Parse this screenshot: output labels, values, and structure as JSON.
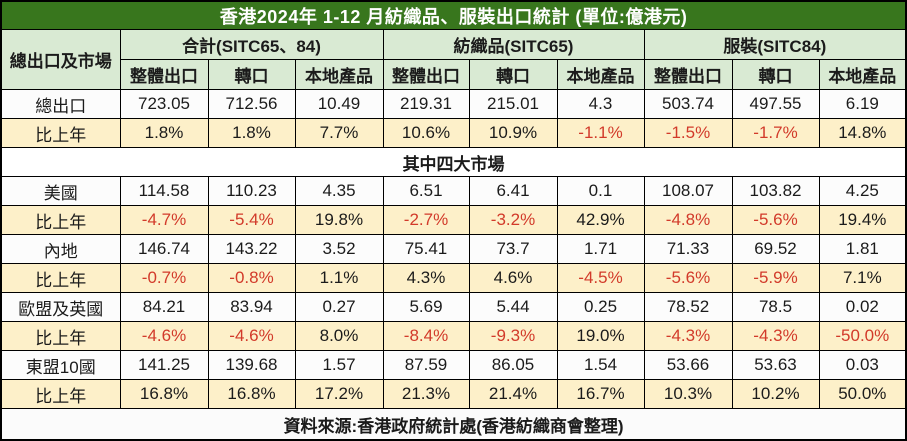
{
  "title": "香港2024年 1-12 月紡織品、服裝出口統計 (單位:億港元)",
  "unit_note": "單位:億港元",
  "footer": "資料來源:香港政府統計處(香港紡織商會整理)",
  "header": {
    "corner": "總出口及市場",
    "groups": [
      "合計(SITC65、84)",
      "紡織品(SITC65)",
      "服裝(SITC84)"
    ],
    "subcols": [
      "整體出口",
      "轉口",
      "本地產品"
    ]
  },
  "rows": [
    {
      "label": "總出口",
      "type": "value",
      "cells": [
        "723.05",
        "712.56",
        "10.49",
        "219.31",
        "215.01",
        "4.3",
        "503.74",
        "497.55",
        "6.19"
      ]
    },
    {
      "label": "比上年",
      "type": "pct",
      "cells": [
        "1.8%",
        "1.8%",
        "7.7%",
        "10.6%",
        "10.9%",
        "-1.1%",
        "-1.5%",
        "-1.7%",
        "14.8%"
      ]
    },
    {
      "label": "其中四大市場",
      "type": "section",
      "cells": []
    },
    {
      "label": "美國",
      "type": "value",
      "cells": [
        "114.58",
        "110.23",
        "4.35",
        "6.51",
        "6.41",
        "0.1",
        "108.07",
        "103.82",
        "4.25"
      ]
    },
    {
      "label": "比上年",
      "type": "pct",
      "cells": [
        "-4.7%",
        "-5.4%",
        "19.8%",
        "-2.7%",
        "-3.2%",
        "42.9%",
        "-4.8%",
        "-5.6%",
        "19.4%"
      ]
    },
    {
      "label": "內地",
      "type": "value",
      "cells": [
        "146.74",
        "143.22",
        "3.52",
        "75.41",
        "73.7",
        "1.71",
        "71.33",
        "69.52",
        "1.81"
      ]
    },
    {
      "label": "比上年",
      "type": "pct",
      "cells": [
        "-0.7%",
        "-0.8%",
        "1.1%",
        "4.3%",
        "4.6%",
        "-4.5%",
        "-5.6%",
        "-5.9%",
        "7.1%"
      ]
    },
    {
      "label": "歐盟及英國",
      "type": "value",
      "cells": [
        "84.21",
        "83.94",
        "0.27",
        "5.69",
        "5.44",
        "0.25",
        "78.52",
        "78.5",
        "0.02"
      ]
    },
    {
      "label": "比上年",
      "type": "pct",
      "cells": [
        "-4.6%",
        "-4.6%",
        "8.0%",
        "-8.4%",
        "-9.3%",
        "19.0%",
        "-4.3%",
        "-4.3%",
        "-50.0%"
      ]
    },
    {
      "label": "東盟10國",
      "type": "value",
      "cells": [
        "141.25",
        "139.68",
        "1.57",
        "87.59",
        "86.05",
        "1.54",
        "53.66",
        "53.63",
        "0.03"
      ]
    },
    {
      "label": "比上年",
      "type": "pct",
      "cells": [
        "16.8%",
        "16.8%",
        "17.2%",
        "21.3%",
        "21.4%",
        "16.7%",
        "10.3%",
        "10.2%",
        "50.0%"
      ]
    }
  ],
  "colors": {
    "title_bg": "#38761d",
    "title_text": "#ffffff",
    "header_bg": "#d9ead3",
    "pct_row_bg": "#fdf0c9",
    "negative_text": "#d23a2a",
    "border": "#000000"
  }
}
